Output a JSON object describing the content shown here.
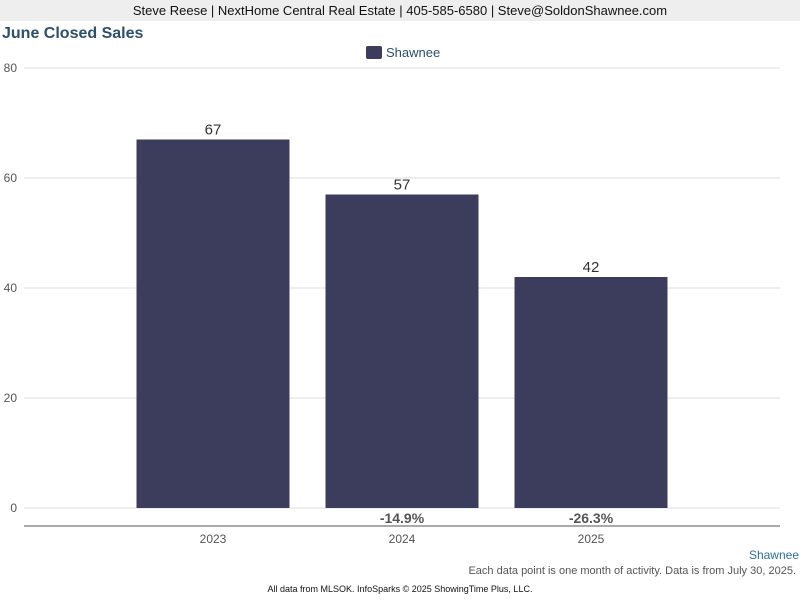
{
  "header": {
    "contact": "Steve Reese | NextHome Central Real Estate | 405-585-6580 | Steve@SoldonShawnee.com"
  },
  "chart_data": {
    "type": "bar",
    "title": "June Closed Sales",
    "categories": [
      "2023",
      "2024",
      "2025"
    ],
    "series": [
      {
        "name": "Shawnee",
        "values": [
          67,
          57,
          42
        ],
        "color": "#3c3d5c"
      }
    ],
    "data_labels": [
      "67",
      "57",
      "42"
    ],
    "change_labels": [
      "",
      "-14.9%",
      "-26.3%"
    ],
    "ylim": [
      0,
      80
    ],
    "yticks": [
      0,
      20,
      40,
      60,
      80
    ],
    "grid": true,
    "legend_position": "top-center",
    "xlabel": "",
    "ylabel": ""
  },
  "footer": {
    "series_label": "Shawnee",
    "note": "Each data point is one month of activity. Data is from July 30, 2025.",
    "source": "All data from MLSOK. InfoSparks © 2025 ShowingTime Plus, LLC."
  }
}
